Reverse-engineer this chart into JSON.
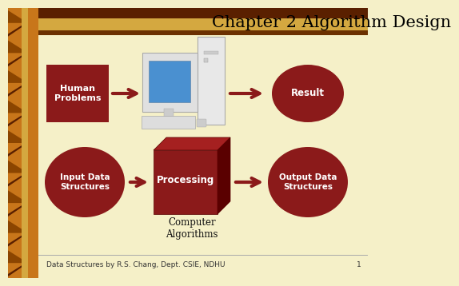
{
  "bg_color": "#F5F0C8",
  "title": "Chapter 2 Algorithm Design",
  "title_fontsize": 15,
  "title_color": "#000000",
  "dark_red": "#8B1A1A",
  "dark_red_shadow": "#5A0000",
  "dark_red_light": "#A52020",
  "orange_bar": "#C8761A",
  "gold_stripe": "#D4A840",
  "footer_text": "Data Structures by R.S. Chang, Dept. CSIE, NDHU",
  "footer_number": "1",
  "footer_color": "#333333",
  "footer_fontsize": 6.5,
  "human_problems_text": "Human\nProblems",
  "result_text": "Result",
  "input_ds_text": "Input Data\nStructures",
  "processing_text": "Processing",
  "output_ds_text": "Output Data\nStructures",
  "computer_algo_text": "Computer\nAlgorithms"
}
